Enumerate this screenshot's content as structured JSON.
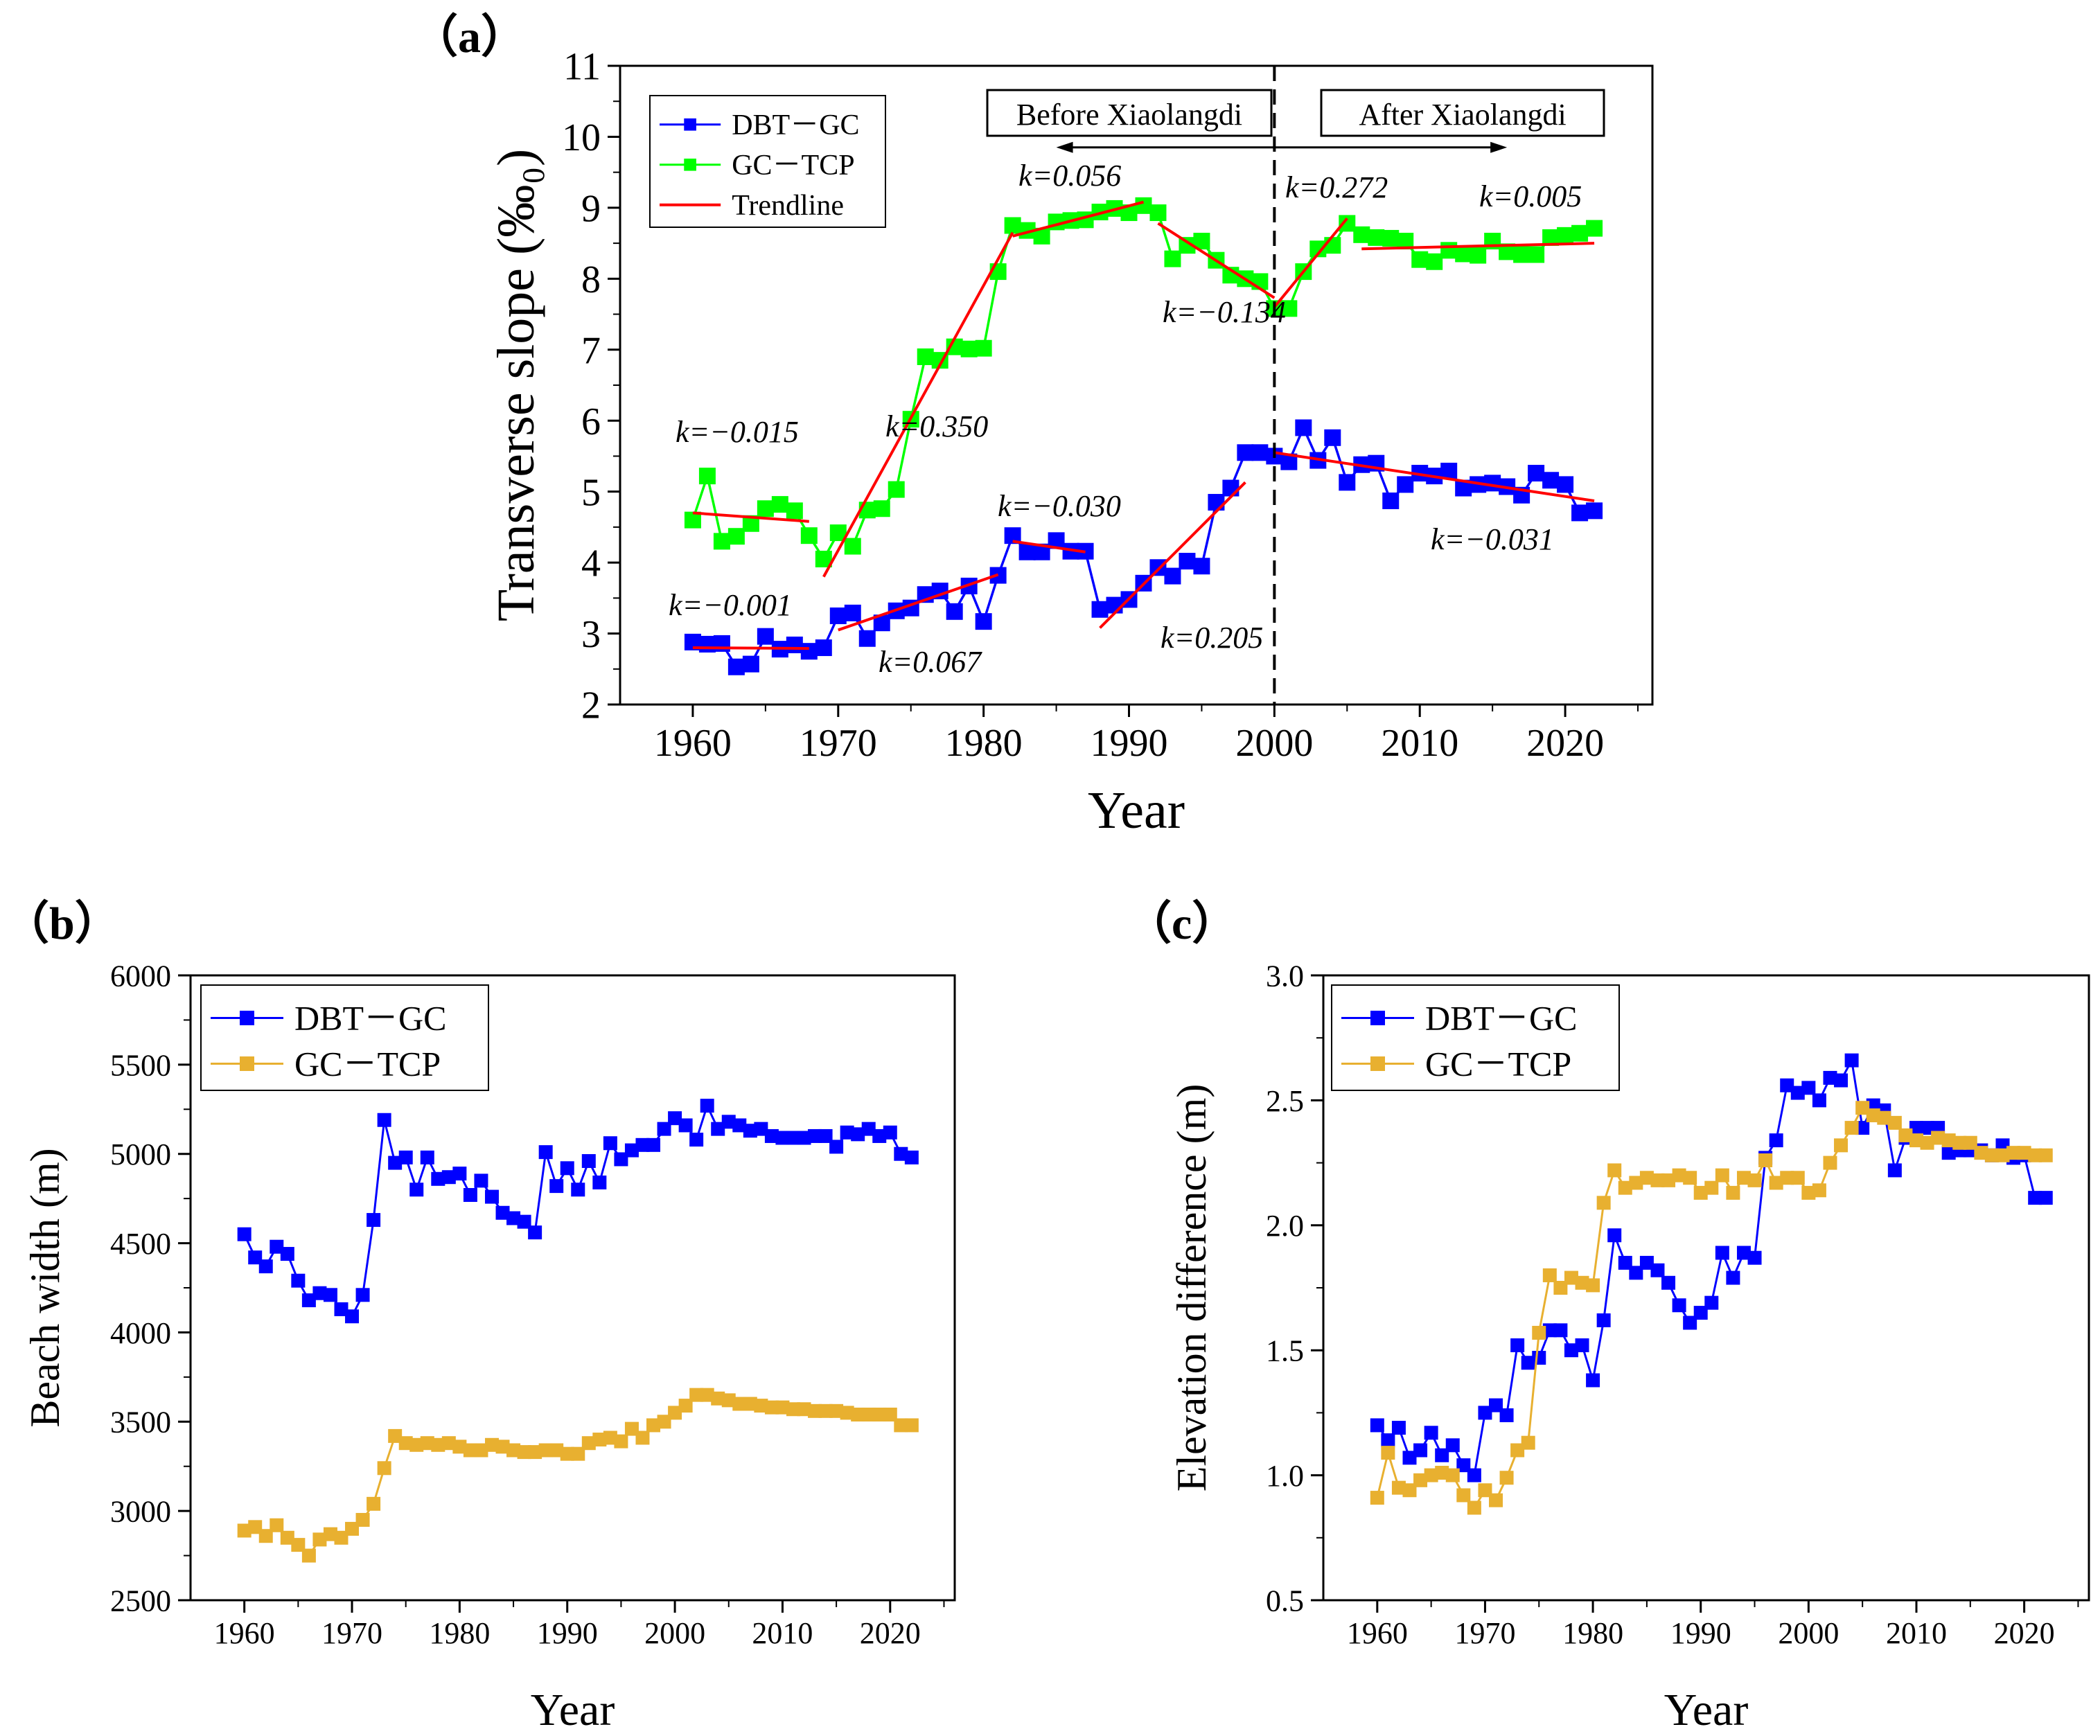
{
  "figure": {
    "panels": [
      {
        "id": "a",
        "label": "（a）"
      },
      {
        "id": "b",
        "label": "（b）"
      },
      {
        "id": "c",
        "label": "（c）"
      }
    ]
  },
  "chart_data": [
    {
      "id": "a",
      "type": "line",
      "title": "",
      "xlabel": "Year",
      "ylabel": "Transverse slope (‰₀)",
      "xlim": [
        1955,
        2026
      ],
      "ylim": [
        2,
        11
      ],
      "xticks": [
        1960,
        1970,
        1980,
        1990,
        2000,
        2010,
        2020
      ],
      "yticks": [
        2,
        3,
        4,
        5,
        6,
        7,
        8,
        9,
        10,
        11
      ],
      "grid": false,
      "legend_position": "top-left",
      "legend": [
        {
          "label": "DBT－GC",
          "color": "#0000ff",
          "kind": "line-marker"
        },
        {
          "label": "GC－TCP",
          "color": "#00ff00",
          "kind": "line-marker"
        },
        {
          "label": "Trendline",
          "color": "#ff0000",
          "kind": "line"
        }
      ],
      "divider": {
        "x": 2000,
        "style": "dashed"
      },
      "period_labels": [
        {
          "text": "Before Xiaolangdi",
          "side": "left"
        },
        {
          "text": "After Xiaolangdi",
          "side": "right"
        }
      ],
      "arrow": {
        "x_start": 1985,
        "x_end": 2016,
        "y": 9.85
      },
      "series": [
        {
          "name": "DBT－GC",
          "color": "#0000ff",
          "x": [
            1960,
            1961,
            1962,
            1963,
            1964,
            1965,
            1966,
            1967,
            1968,
            1969,
            1970,
            1971,
            1972,
            1973,
            1974,
            1975,
            1976,
            1977,
            1978,
            1979,
            1980,
            1981,
            1982,
            1983,
            1984,
            1985,
            1986,
            1987,
            1988,
            1989,
            1990,
            1991,
            1992,
            1993,
            1994,
            1995,
            1996,
            1997,
            1998,
            1999,
            2000,
            2001,
            2002,
            2003,
            2004,
            2005,
            2006,
            2007,
            2008,
            2009,
            2010,
            2011,
            2012,
            2013,
            2014,
            2015,
            2016,
            2017,
            2018,
            2019,
            2020,
            2021,
            2022
          ],
          "y": [
            2.88,
            2.85,
            2.86,
            2.53,
            2.57,
            2.96,
            2.78,
            2.84,
            2.75,
            2.8,
            3.25,
            3.29,
            2.93,
            3.15,
            3.32,
            3.36,
            3.55,
            3.6,
            3.31,
            3.67,
            3.17,
            3.82,
            4.38,
            4.15,
            4.15,
            4.31,
            4.16,
            4.16,
            3.34,
            3.4,
            3.48,
            3.71,
            3.93,
            3.81,
            4.02,
            3.95,
            4.85,
            5.05,
            5.55,
            5.55,
            5.5,
            5.42,
            5.9,
            5.44,
            5.76,
            5.13,
            5.38,
            5.4,
            4.87,
            5.1,
            5.26,
            5.22,
            5.29,
            5.05,
            5.1,
            5.12,
            5.07,
            4.95,
            5.26,
            5.16,
            5.1,
            4.7,
            4.73
          ]
        },
        {
          "name": "GC－TCP",
          "color": "#00ff00",
          "x": [
            1960,
            1961,
            1962,
            1963,
            1964,
            1965,
            1966,
            1967,
            1968,
            1969,
            1970,
            1971,
            1972,
            1973,
            1974,
            1975,
            1976,
            1977,
            1978,
            1979,
            1980,
            1981,
            1982,
            1983,
            1984,
            1985,
            1986,
            1987,
            1988,
            1989,
            1990,
            1991,
            1992,
            1993,
            1994,
            1995,
            1996,
            1997,
            1998,
            1999,
            2000,
            2001,
            2002,
            2003,
            2004,
            2005,
            2006,
            2007,
            2008,
            2009,
            2010,
            2011,
            2012,
            2013,
            2014,
            2015,
            2016,
            2017,
            2018,
            2019,
            2020,
            2021,
            2022
          ],
          "y": [
            4.6,
            5.22,
            4.3,
            4.37,
            4.55,
            4.76,
            4.82,
            4.73,
            4.38,
            4.05,
            4.42,
            4.23,
            4.74,
            4.76,
            5.03,
            6.02,
            6.9,
            6.85,
            7.04,
            7.01,
            7.02,
            8.1,
            8.75,
            8.68,
            8.6,
            8.8,
            8.82,
            8.83,
            8.94,
            8.99,
            8.93,
            9.03,
            8.93,
            8.28,
            8.47,
            8.53,
            8.26,
            8.05,
            8.0,
            7.96,
            7.58,
            7.58,
            8.1,
            8.42,
            8.47,
            8.78,
            8.62,
            8.58,
            8.57,
            8.53,
            8.27,
            8.24,
            8.4,
            8.35,
            8.33,
            8.53,
            8.38,
            8.34,
            8.34,
            8.58,
            8.61,
            8.64,
            8.71
          ]
        }
      ],
      "trendlines": [
        {
          "x": [
            1960,
            1968
          ],
          "y": [
            2.8,
            2.79
          ],
          "k": "k=−0.001"
        },
        {
          "x": [
            1970,
            1981
          ],
          "y": [
            3.05,
            3.83
          ],
          "k": "k=0.067"
        },
        {
          "x": [
            1982,
            1987
          ],
          "y": [
            4.3,
            4.15
          ],
          "k": "k=−0.030"
        },
        {
          "x": [
            1988,
            1998
          ],
          "y": [
            3.08,
            5.13
          ],
          "k": "k=0.205"
        },
        {
          "x": [
            2000,
            2022
          ],
          "y": [
            5.55,
            4.87
          ],
          "k": "k=−0.031"
        },
        {
          "x": [
            1960,
            1968
          ],
          "y": [
            4.7,
            4.58
          ],
          "k": "k=−0.015"
        },
        {
          "x": [
            1969,
            1982
          ],
          "y": [
            3.8,
            8.65
          ],
          "k": "k=0.350"
        },
        {
          "x": [
            1982,
            1991
          ],
          "y": [
            8.6,
            9.08
          ],
          "k": "k=0.056"
        },
        {
          "x": [
            1992,
            2000
          ],
          "y": [
            8.78,
            7.73
          ],
          "k": "k=−0.134"
        },
        {
          "x": [
            2000,
            2005
          ],
          "y": [
            7.6,
            8.85
          ],
          "k": "k=0.272"
        },
        {
          "x": [
            2006,
            2022
          ],
          "y": [
            8.42,
            8.5
          ],
          "k": "k=0.005"
        }
      ]
    },
    {
      "id": "b",
      "type": "line",
      "title": "",
      "xlabel": "Year",
      "ylabel": "Beach width (m)",
      "xlim": [
        1955,
        2026
      ],
      "ylim": [
        2500,
        6000
      ],
      "xticks": [
        1960,
        1970,
        1980,
        1990,
        2000,
        2010,
        2020
      ],
      "yticks": [
        2500,
        3000,
        3500,
        4000,
        4500,
        5000,
        5500,
        6000
      ],
      "grid": false,
      "legend_position": "top-left",
      "legend": [
        {
          "label": "DBT－GC",
          "color": "#0000ff",
          "kind": "line-marker"
        },
        {
          "label": "GC－TCP",
          "color": "#e8b030",
          "kind": "line-marker"
        }
      ],
      "series": [
        {
          "name": "DBT－GC",
          "color": "#0000ff",
          "x": [
            1960,
            1961,
            1962,
            1963,
            1964,
            1965,
            1966,
            1967,
            1968,
            1969,
            1970,
            1971,
            1972,
            1973,
            1974,
            1975,
            1976,
            1977,
            1978,
            1979,
            1980,
            1981,
            1982,
            1983,
            1984,
            1985,
            1986,
            1987,
            1988,
            1989,
            1990,
            1991,
            1992,
            1993,
            1994,
            1995,
            1996,
            1997,
            1998,
            1999,
            2000,
            2001,
            2002,
            2003,
            2004,
            2005,
            2006,
            2007,
            2008,
            2009,
            2010,
            2011,
            2012,
            2013,
            2014,
            2015,
            2016,
            2017,
            2018,
            2019,
            2020,
            2021,
            2022
          ],
          "y": [
            4550,
            4420,
            4370,
            4480,
            4440,
            4290,
            4180,
            4220,
            4210,
            4130,
            4090,
            4210,
            4630,
            5190,
            4950,
            4980,
            4800,
            4980,
            4860,
            4870,
            4890,
            4770,
            4850,
            4760,
            4670,
            4640,
            4620,
            4560,
            5010,
            4820,
            4920,
            4800,
            4960,
            4840,
            5060,
            4970,
            5020,
            5050,
            5050,
            5140,
            5200,
            5160,
            5080,
            5270,
            5140,
            5180,
            5160,
            5130,
            5140,
            5100,
            5090,
            5090,
            5090,
            5100,
            5100,
            5040,
            5120,
            5110,
            5140,
            5100,
            5120,
            5000,
            4980
          ]
        },
        {
          "name": "GC－TCP",
          "color": "#e8b030",
          "x": [
            1960,
            1961,
            1962,
            1963,
            1964,
            1965,
            1966,
            1967,
            1968,
            1969,
            1970,
            1971,
            1972,
            1973,
            1974,
            1975,
            1976,
            1977,
            1978,
            1979,
            1980,
            1981,
            1982,
            1983,
            1984,
            1985,
            1986,
            1987,
            1988,
            1989,
            1990,
            1991,
            1992,
            1993,
            1994,
            1995,
            1996,
            1997,
            1998,
            1999,
            2000,
            2001,
            2002,
            2003,
            2004,
            2005,
            2006,
            2007,
            2008,
            2009,
            2010,
            2011,
            2012,
            2013,
            2014,
            2015,
            2016,
            2017,
            2018,
            2019,
            2020,
            2021,
            2022
          ],
          "y": [
            2890,
            2910,
            2860,
            2920,
            2850,
            2810,
            2750,
            2840,
            2870,
            2850,
            2900,
            2950,
            3040,
            3240,
            3420,
            3380,
            3370,
            3380,
            3370,
            3380,
            3360,
            3340,
            3340,
            3370,
            3360,
            3340,
            3330,
            3330,
            3340,
            3340,
            3320,
            3320,
            3380,
            3400,
            3410,
            3390,
            3460,
            3410,
            3480,
            3500,
            3550,
            3590,
            3650,
            3650,
            3630,
            3620,
            3600,
            3600,
            3590,
            3580,
            3580,
            3570,
            3570,
            3560,
            3560,
            3560,
            3550,
            3540,
            3540,
            3540,
            3540,
            3480,
            3480
          ]
        }
      ]
    },
    {
      "id": "c",
      "type": "line",
      "title": "",
      "xlabel": "Year",
      "ylabel": "Elevation difference (m)",
      "xlim": [
        1955,
        2026
      ],
      "ylim": [
        0.5,
        3.0
      ],
      "xticks": [
        1960,
        1970,
        1980,
        1990,
        2000,
        2010,
        2020
      ],
      "yticks": [
        "0.5",
        "1.0",
        "1.5",
        "2.0",
        "2.5",
        "3.0"
      ],
      "grid": false,
      "legend_position": "top-left",
      "legend": [
        {
          "label": "DBT－GC",
          "color": "#0000ff",
          "kind": "line-marker"
        },
        {
          "label": "GC－TCP",
          "color": "#e8b030",
          "kind": "line-marker"
        }
      ],
      "series": [
        {
          "name": "DBT－GC",
          "color": "#0000ff",
          "x": [
            1960,
            1961,
            1962,
            1963,
            1964,
            1965,
            1966,
            1967,
            1968,
            1969,
            1970,
            1971,
            1972,
            1973,
            1974,
            1975,
            1976,
            1977,
            1978,
            1979,
            1980,
            1981,
            1982,
            1983,
            1984,
            1985,
            1986,
            1987,
            1988,
            1989,
            1990,
            1991,
            1992,
            1993,
            1994,
            1995,
            1996,
            1997,
            1998,
            1999,
            2000,
            2001,
            2002,
            2003,
            2004,
            2005,
            2006,
            2007,
            2008,
            2009,
            2010,
            2011,
            2012,
            2013,
            2014,
            2015,
            2016,
            2017,
            2018,
            2019,
            2020,
            2021,
            2022
          ],
          "y": [
            1.2,
            1.14,
            1.19,
            1.07,
            1.1,
            1.17,
            1.08,
            1.12,
            1.04,
            1.0,
            1.25,
            1.28,
            1.24,
            1.52,
            1.45,
            1.47,
            1.58,
            1.58,
            1.5,
            1.52,
            1.38,
            1.62,
            1.96,
            1.85,
            1.81,
            1.85,
            1.82,
            1.77,
            1.68,
            1.61,
            1.65,
            1.69,
            1.89,
            1.79,
            1.89,
            1.87,
            2.27,
            2.34,
            2.56,
            2.53,
            2.55,
            2.5,
            2.59,
            2.58,
            2.66,
            2.39,
            2.48,
            2.46,
            2.22,
            2.35,
            2.39,
            2.39,
            2.39,
            2.29,
            2.3,
            2.3,
            2.3,
            2.28,
            2.32,
            2.27,
            2.28,
            2.11,
            2.11
          ]
        },
        {
          "name": "GC－TCP",
          "color": "#e8b030",
          "x": [
            1960,
            1961,
            1962,
            1963,
            1964,
            1965,
            1966,
            1967,
            1968,
            1969,
            1970,
            1971,
            1972,
            1973,
            1974,
            1975,
            1976,
            1977,
            1978,
            1979,
            1980,
            1981,
            1982,
            1983,
            1984,
            1985,
            1986,
            1987,
            1988,
            1989,
            1990,
            1991,
            1992,
            1993,
            1994,
            1995,
            1996,
            1997,
            1998,
            1999,
            2000,
            2001,
            2002,
            2003,
            2004,
            2005,
            2006,
            2007,
            2008,
            2009,
            2010,
            2011,
            2012,
            2013,
            2014,
            2015,
            2016,
            2017,
            2018,
            2019,
            2020,
            2021,
            2022
          ],
          "y": [
            0.91,
            1.09,
            0.95,
            0.94,
            0.98,
            1.0,
            1.01,
            1.0,
            0.92,
            0.87,
            0.94,
            0.9,
            0.99,
            1.1,
            1.13,
            1.57,
            1.8,
            1.75,
            1.79,
            1.77,
            1.76,
            2.09,
            2.22,
            2.15,
            2.17,
            2.19,
            2.18,
            2.18,
            2.2,
            2.19,
            2.13,
            2.15,
            2.2,
            2.13,
            2.19,
            2.18,
            2.26,
            2.17,
            2.19,
            2.19,
            2.13,
            2.14,
            2.25,
            2.32,
            2.39,
            2.47,
            2.44,
            2.43,
            2.41,
            2.36,
            2.34,
            2.33,
            2.35,
            2.34,
            2.33,
            2.33,
            2.29,
            2.28,
            2.28,
            2.29,
            2.29,
            2.28,
            2.28
          ]
        }
      ]
    }
  ]
}
